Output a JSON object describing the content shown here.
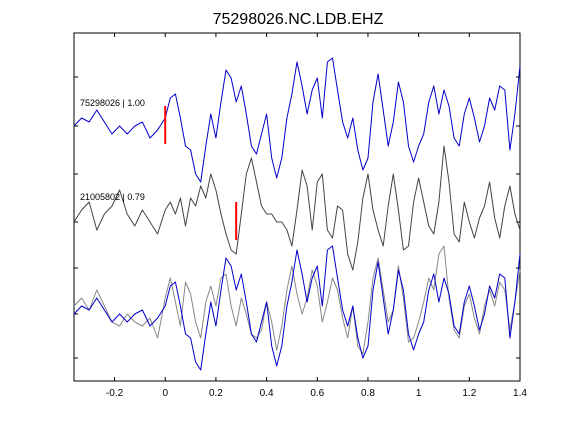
{
  "chart_data": {
    "type": "line",
    "title": "75298026.NC.LDB.EHZ",
    "xlabel": "",
    "ylabel": "",
    "xlim": [
      -0.36,
      1.4
    ],
    "x_ticks": [
      -0.2,
      0,
      0.2,
      0.4,
      0.6,
      0.8,
      1,
      1.2,
      1.4
    ],
    "x_tick_labels": [
      "-0.2",
      "0",
      "0.2",
      "0.4",
      "0.6",
      "0.8",
      "1",
      "1.2",
      "1.4"
    ],
    "grid": false,
    "panels": [
      {
        "label": "75298026 | 1.00",
        "series": [
          {
            "color": "#0000cc",
            "pick_time": 0.0,
            "x": [
              -0.36,
              -0.33,
              -0.3,
              -0.27,
              -0.24,
              -0.21,
              -0.18,
              -0.15,
              -0.12,
              -0.09,
              -0.06,
              -0.03,
              0.0,
              0.02,
              0.04,
              0.06,
              0.08,
              0.1,
              0.12,
              0.14,
              0.16,
              0.18,
              0.2,
              0.22,
              0.24,
              0.26,
              0.28,
              0.3,
              0.32,
              0.34,
              0.36,
              0.38,
              0.4,
              0.42,
              0.44,
              0.46,
              0.48,
              0.5,
              0.52,
              0.54,
              0.56,
              0.58,
              0.6,
              0.62,
              0.64,
              0.66,
              0.68,
              0.7,
              0.72,
              0.74,
              0.76,
              0.78,
              0.8,
              0.82,
              0.84,
              0.86,
              0.88,
              0.9,
              0.92,
              0.94,
              0.96,
              0.98,
              1.0,
              1.02,
              1.04,
              1.06,
              1.08,
              1.1,
              1.12,
              1.14,
              1.16,
              1.18,
              1.2,
              1.22,
              1.24,
              1.26,
              1.28,
              1.3,
              1.32,
              1.34,
              1.36,
              1.38,
              1.4
            ],
            "y": [
              0.0,
              0.2,
              0.1,
              0.4,
              0.1,
              -0.2,
              0.0,
              -0.2,
              0.0,
              0.1,
              -0.3,
              -0.1,
              0.2,
              0.7,
              0.8,
              0.2,
              -0.5,
              -0.6,
              -1.2,
              -1.4,
              -0.5,
              0.3,
              -0.3,
              0.6,
              1.4,
              1.2,
              0.6,
              1.0,
              0.3,
              -0.5,
              -0.7,
              -0.2,
              0.3,
              -0.8,
              -1.3,
              -0.8,
              0.2,
              0.8,
              1.6,
              1.0,
              0.3,
              0.9,
              1.2,
              0.2,
              1.6,
              1.7,
              0.9,
              0.1,
              -0.3,
              0.2,
              -0.6,
              -1.1,
              -0.8,
              0.6,
              1.3,
              0.4,
              -0.5,
              0.1,
              1.1,
              0.6,
              -0.5,
              -0.9,
              -0.5,
              -0.2,
              0.6,
              1.0,
              0.3,
              0.9,
              0.5,
              -0.3,
              -0.5,
              0.3,
              0.7,
              0.2,
              -0.4,
              0.0,
              0.7,
              0.4,
              1.0,
              0.9,
              -0.6,
              0.3,
              1.5
            ]
          }
        ]
      },
      {
        "label": "21005802 | 0.79",
        "series": [
          {
            "color": "#444444",
            "pick_time": 0.28,
            "x": [
              -0.36,
              -0.33,
              -0.3,
              -0.27,
              -0.24,
              -0.21,
              -0.18,
              -0.15,
              -0.12,
              -0.09,
              -0.06,
              -0.03,
              0.0,
              0.02,
              0.04,
              0.06,
              0.08,
              0.1,
              0.12,
              0.14,
              0.16,
              0.18,
              0.2,
              0.22,
              0.24,
              0.26,
              0.28,
              0.3,
              0.32,
              0.34,
              0.36,
              0.38,
              0.4,
              0.42,
              0.44,
              0.46,
              0.48,
              0.5,
              0.52,
              0.54,
              0.56,
              0.58,
              0.6,
              0.62,
              0.64,
              0.66,
              0.68,
              0.7,
              0.72,
              0.74,
              0.76,
              0.78,
              0.8,
              0.82,
              0.84,
              0.86,
              0.88,
              0.9,
              0.92,
              0.94,
              0.96,
              0.98,
              1.0,
              1.02,
              1.04,
              1.06,
              1.08,
              1.1,
              1.12,
              1.14,
              1.16,
              1.18,
              1.2,
              1.22,
              1.24,
              1.26,
              1.28,
              1.3,
              1.32,
              1.34,
              1.36,
              1.38,
              1.4
            ],
            "y": [
              0.0,
              0.3,
              0.5,
              -0.2,
              0.2,
              0.4,
              0.8,
              0.2,
              -0.1,
              0.3,
              0.0,
              -0.3,
              0.3,
              0.5,
              0.2,
              0.6,
              -0.1,
              0.6,
              0.4,
              0.9,
              0.6,
              1.2,
              0.8,
              0.2,
              -0.3,
              -0.7,
              -0.8,
              0.2,
              1.2,
              1.6,
              1.0,
              0.4,
              0.2,
              0.2,
              0.0,
              0.0,
              -0.2,
              -0.6,
              0.3,
              1.3,
              0.9,
              -0.2,
              1.0,
              1.2,
              -0.2,
              -0.4,
              0.4,
              0.3,
              -0.8,
              -1.2,
              -0.5,
              0.6,
              1.2,
              0.3,
              -0.2,
              -0.6,
              0.4,
              1.2,
              0.3,
              -0.7,
              -0.6,
              0.5,
              1.1,
              0.5,
              -0.1,
              -0.3,
              0.5,
              1.9,
              1.0,
              -0.3,
              -0.5,
              0.5,
              0.0,
              -0.4,
              0.1,
              0.4,
              1.0,
              0.1,
              -0.4,
              0.4,
              0.9,
              0.2,
              -0.2
            ]
          }
        ]
      },
      {
        "label": "",
        "series": [
          {
            "color": "#888888",
            "x": [
              -0.36,
              -0.33,
              -0.3,
              -0.27,
              -0.24,
              -0.21,
              -0.18,
              -0.15,
              -0.12,
              -0.09,
              -0.06,
              -0.03,
              0.0,
              0.02,
              0.04,
              0.06,
              0.08,
              0.1,
              0.12,
              0.14,
              0.16,
              0.18,
              0.2,
              0.22,
              0.24,
              0.26,
              0.28,
              0.3,
              0.32,
              0.34,
              0.36,
              0.38,
              0.4,
              0.42,
              0.44,
              0.46,
              0.48,
              0.5,
              0.52,
              0.54,
              0.56,
              0.58,
              0.6,
              0.62,
              0.64,
              0.66,
              0.68,
              0.7,
              0.72,
              0.74,
              0.76,
              0.78,
              0.8,
              0.82,
              0.84,
              0.86,
              0.88,
              0.9,
              0.92,
              0.94,
              0.96,
              0.98,
              1.0,
              1.02,
              1.04,
              1.06,
              1.08,
              1.1,
              1.12,
              1.14,
              1.16,
              1.18,
              1.2,
              1.22,
              1.24,
              1.26,
              1.28,
              1.3,
              1.32,
              1.34,
              1.36,
              1.38,
              1.4
            ],
            "y": [
              0.2,
              0.4,
              0.1,
              0.6,
              0.2,
              -0.2,
              -0.3,
              0.0,
              -0.2,
              -0.3,
              -0.1,
              -0.6,
              0.4,
              0.9,
              0.3,
              -0.3,
              0.8,
              0.5,
              -0.2,
              -0.6,
              0.3,
              0.7,
              0.2,
              0.9,
              1.0,
              0.2,
              -0.3,
              0.4,
              0.0,
              -0.5,
              -0.6,
              -0.4,
              0.3,
              -0.2,
              -0.9,
              -0.3,
              0.6,
              1.2,
              0.5,
              0.0,
              0.4,
              1.1,
              0.7,
              -0.2,
              0.3,
              0.9,
              0.6,
              -0.1,
              -0.6,
              0.2,
              -0.8,
              -1.0,
              -0.2,
              0.9,
              1.4,
              0.6,
              -0.2,
              0.1,
              1.2,
              0.4,
              -0.7,
              -0.6,
              -0.2,
              0.3,
              0.9,
              0.6,
              1.5,
              1.7,
              0.4,
              -0.4,
              -0.6,
              0.2,
              0.5,
              -0.1,
              -0.5,
              0.2,
              0.6,
              0.2,
              0.8,
              0.6,
              -0.4,
              0.3,
              1.1
            ]
          },
          {
            "color": "#0000cc",
            "x": [
              -0.36,
              -0.33,
              -0.3,
              -0.27,
              -0.24,
              -0.21,
              -0.18,
              -0.15,
              -0.12,
              -0.09,
              -0.06,
              -0.03,
              0.0,
              0.02,
              0.04,
              0.06,
              0.08,
              0.1,
              0.12,
              0.14,
              0.16,
              0.18,
              0.2,
              0.22,
              0.24,
              0.26,
              0.28,
              0.3,
              0.32,
              0.34,
              0.36,
              0.38,
              0.4,
              0.42,
              0.44,
              0.46,
              0.48,
              0.5,
              0.52,
              0.54,
              0.56,
              0.58,
              0.6,
              0.62,
              0.64,
              0.66,
              0.68,
              0.7,
              0.72,
              0.74,
              0.76,
              0.78,
              0.8,
              0.82,
              0.84,
              0.86,
              0.88,
              0.9,
              0.92,
              0.94,
              0.96,
              0.98,
              1.0,
              1.02,
              1.04,
              1.06,
              1.08,
              1.1,
              1.12,
              1.14,
              1.16,
              1.18,
              1.2,
              1.22,
              1.24,
              1.26,
              1.28,
              1.3,
              1.32,
              1.34,
              1.36,
              1.38,
              1.4
            ],
            "y": [
              0.0,
              0.2,
              0.1,
              0.4,
              0.1,
              -0.2,
              0.0,
              -0.2,
              0.0,
              0.1,
              -0.3,
              -0.1,
              0.2,
              0.7,
              0.8,
              0.2,
              -0.5,
              -0.6,
              -1.2,
              -1.4,
              -0.5,
              0.3,
              -0.3,
              0.6,
              1.4,
              1.2,
              0.6,
              1.0,
              0.3,
              -0.5,
              -0.7,
              -0.2,
              0.3,
              -0.8,
              -1.3,
              -0.8,
              0.2,
              0.8,
              1.6,
              1.0,
              0.3,
              0.9,
              1.2,
              0.2,
              1.6,
              1.7,
              0.9,
              0.1,
              -0.3,
              0.2,
              -0.6,
              -1.1,
              -0.8,
              0.6,
              1.3,
              0.4,
              -0.5,
              0.1,
              1.1,
              0.6,
              -0.5,
              -0.9,
              -0.5,
              -0.2,
              0.6,
              1.0,
              0.3,
              0.9,
              0.5,
              -0.3,
              -0.5,
              0.3,
              0.7,
              0.2,
              -0.4,
              0.0,
              0.7,
              0.4,
              1.0,
              0.9,
              -0.6,
              0.3,
              1.5
            ]
          }
        ]
      }
    ],
    "pick_marker_color": "#ff0000"
  }
}
